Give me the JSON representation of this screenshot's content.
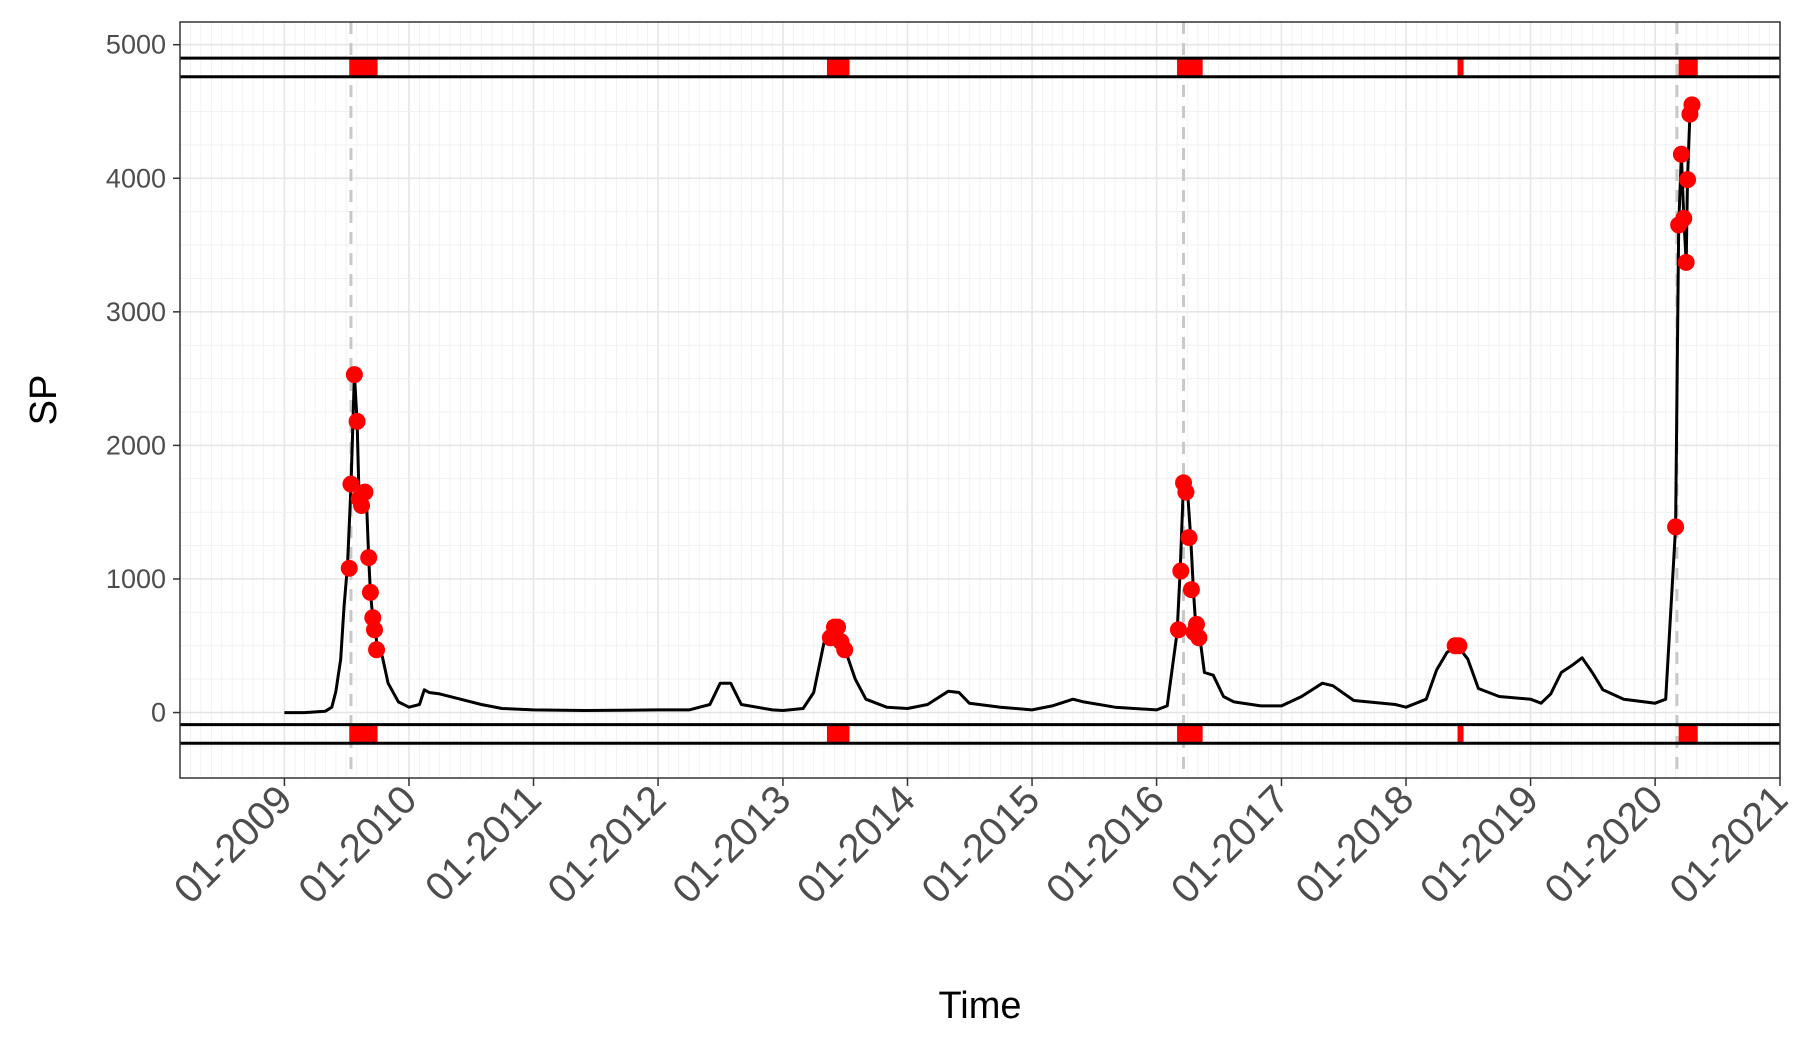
{
  "chart_data": {
    "type": "line",
    "title": "",
    "xlabel": "Time",
    "ylabel": "SP",
    "x_ticks": [
      "01-2009",
      "01-2010",
      "01-2011",
      "01-2012",
      "01-2013",
      "01-2014",
      "01-2015",
      "01-2016",
      "01-2017",
      "01-2018",
      "01-2019",
      "01-2020",
      "01-2021"
    ],
    "y_ticks": [
      0,
      1000,
      2000,
      3000,
      4000,
      5000
    ],
    "xlim": [
      "2008-03-01",
      "2021-01-01"
    ],
    "ylim": [
      -490,
      5170
    ],
    "grid": true,
    "line_color": "#000000",
    "point_color": "#ff0000",
    "vline_color": "#c8c8c8",
    "series": [
      {
        "values": [
          [
            "2009-01-01",
            0
          ],
          [
            "2009-03-01",
            0
          ],
          [
            "2009-05-01",
            10
          ],
          [
            "2009-05-20",
            40
          ],
          [
            "2009-06-01",
            160
          ],
          [
            "2009-06-15",
            400
          ],
          [
            "2009-06-25",
            800
          ],
          [
            "2009-07-05",
            1100
          ],
          [
            "2009-07-15",
            1700
          ],
          [
            "2009-07-25",
            2530
          ],
          [
            "2009-08-02",
            2180
          ],
          [
            "2009-08-08",
            1600
          ],
          [
            "2009-08-15",
            1550
          ],
          [
            "2009-08-22",
            1650
          ],
          [
            "2009-08-29",
            1620
          ],
          [
            "2009-09-05",
            1160
          ],
          [
            "2009-09-10",
            900
          ],
          [
            "2009-09-17",
            710
          ],
          [
            "2009-09-24",
            620
          ],
          [
            "2009-10-01",
            470
          ],
          [
            "2009-10-15",
            420
          ],
          [
            "2009-11-01",
            220
          ],
          [
            "2009-12-01",
            80
          ],
          [
            "2010-01-01",
            40
          ],
          [
            "2010-02-01",
            60
          ],
          [
            "2010-02-15",
            170
          ],
          [
            "2010-03-01",
            150
          ],
          [
            "2010-04-01",
            140
          ],
          [
            "2010-06-01",
            100
          ],
          [
            "2010-08-01",
            60
          ],
          [
            "2010-10-01",
            30
          ],
          [
            "2011-01-01",
            20
          ],
          [
            "2011-06-01",
            15
          ],
          [
            "2012-01-01",
            20
          ],
          [
            "2012-04-01",
            20
          ],
          [
            "2012-06-01",
            60
          ],
          [
            "2012-07-01",
            220
          ],
          [
            "2012-08-01",
            220
          ],
          [
            "2012-09-01",
            60
          ],
          [
            "2012-12-01",
            20
          ],
          [
            "2013-01-01",
            15
          ],
          [
            "2013-03-01",
            30
          ],
          [
            "2013-04-01",
            150
          ],
          [
            "2013-05-01",
            520
          ],
          [
            "2013-06-01",
            630
          ],
          [
            "2013-06-15",
            620
          ],
          [
            "2013-07-01",
            480
          ],
          [
            "2013-08-01",
            250
          ],
          [
            "2013-09-01",
            100
          ],
          [
            "2013-11-01",
            40
          ],
          [
            "2014-01-01",
            30
          ],
          [
            "2014-03-01",
            60
          ],
          [
            "2014-05-01",
            160
          ],
          [
            "2014-06-01",
            150
          ],
          [
            "2014-07-01",
            70
          ],
          [
            "2014-10-01",
            40
          ],
          [
            "2015-01-01",
            20
          ],
          [
            "2015-03-01",
            50
          ],
          [
            "2015-05-01",
            100
          ],
          [
            "2015-06-01",
            80
          ],
          [
            "2015-09-01",
            40
          ],
          [
            "2016-01-01",
            20
          ],
          [
            "2016-02-01",
            50
          ],
          [
            "2016-03-01",
            600
          ],
          [
            "2016-03-10",
            1050
          ],
          [
            "2016-03-20",
            1720
          ],
          [
            "2016-04-01",
            1650
          ],
          [
            "2016-04-10",
            1310
          ],
          [
            "2016-04-18",
            920
          ],
          [
            "2016-04-25",
            640
          ],
          [
            "2016-05-01",
            660
          ],
          [
            "2016-05-07",
            560
          ],
          [
            "2016-05-20",
            300
          ],
          [
            "2016-06-15",
            280
          ],
          [
            "2016-07-15",
            120
          ],
          [
            "2016-08-15",
            80
          ],
          [
            "2016-11-01",
            50
          ],
          [
            "2017-01-01",
            50
          ],
          [
            "2017-03-01",
            120
          ],
          [
            "2017-05-01",
            220
          ],
          [
            "2017-06-01",
            200
          ],
          [
            "2017-08-01",
            90
          ],
          [
            "2017-12-01",
            60
          ],
          [
            "2018-01-01",
            40
          ],
          [
            "2018-03-01",
            100
          ],
          [
            "2018-04-01",
            320
          ],
          [
            "2018-05-01",
            450
          ],
          [
            "2018-06-01",
            500
          ],
          [
            "2018-07-01",
            400
          ],
          [
            "2018-08-01",
            180
          ],
          [
            "2018-10-01",
            120
          ],
          [
            "2019-01-01",
            100
          ],
          [
            "2019-02-01",
            70
          ],
          [
            "2019-03-01",
            140
          ],
          [
            "2019-04-01",
            300
          ],
          [
            "2019-05-01",
            350
          ],
          [
            "2019-06-01",
            410
          ],
          [
            "2019-07-01",
            300
          ],
          [
            "2019-08-01",
            170
          ],
          [
            "2019-10-01",
            100
          ],
          [
            "2020-01-01",
            70
          ],
          [
            "2020-02-01",
            100
          ],
          [
            "2020-03-01",
            1390
          ],
          [
            "2020-03-10",
            3650
          ],
          [
            "2020-03-18",
            4180
          ],
          [
            "2020-03-25",
            3700
          ],
          [
            "2020-04-01",
            3370
          ],
          [
            "2020-04-05",
            3990
          ],
          [
            "2020-04-12",
            4480
          ],
          [
            "2020-04-18",
            4550
          ]
        ]
      }
    ],
    "points": [
      [
        "2009-07-10",
        1080
      ],
      [
        "2009-07-15",
        1710
      ],
      [
        "2009-07-25",
        2530
      ],
      [
        "2009-08-02",
        2180
      ],
      [
        "2009-08-08",
        1600
      ],
      [
        "2009-08-15",
        1550
      ],
      [
        "2009-08-25",
        1650
      ],
      [
        "2009-09-05",
        1160
      ],
      [
        "2009-09-10",
        900
      ],
      [
        "2009-09-17",
        710
      ],
      [
        "2009-09-22",
        620
      ],
      [
        "2009-09-28",
        470
      ],
      [
        "2013-05-20",
        560
      ],
      [
        "2013-06-01",
        640
      ],
      [
        "2013-06-10",
        640
      ],
      [
        "2013-06-20",
        530
      ],
      [
        "2013-07-01",
        470
      ],
      [
        "2016-03-05",
        620
      ],
      [
        "2016-03-12",
        1060
      ],
      [
        "2016-03-20",
        1720
      ],
      [
        "2016-03-27",
        1650
      ],
      [
        "2016-04-05",
        1310
      ],
      [
        "2016-04-12",
        920
      ],
      [
        "2016-04-20",
        600
      ],
      [
        "2016-04-27",
        660
      ],
      [
        "2016-05-04",
        560
      ],
      [
        "2018-05-25",
        500
      ],
      [
        "2018-06-05",
        500
      ],
      [
        "2020-03-01",
        1390
      ],
      [
        "2020-03-10",
        3650
      ],
      [
        "2020-03-18",
        4180
      ],
      [
        "2020-03-25",
        3700
      ],
      [
        "2020-04-01",
        3370
      ],
      [
        "2020-04-05",
        3990
      ],
      [
        "2020-04-12",
        4480
      ],
      [
        "2020-04-18",
        4550
      ]
    ],
    "vlines": [
      "2009-07-15",
      "2016-03-20",
      "2020-03-05"
    ],
    "band_top": [
      4760,
      4900
    ],
    "band_bottom": [
      -230,
      -90
    ],
    "band_segments": [
      [
        "2009-07-10",
        "2009-10-01"
      ],
      [
        "2013-05-10",
        "2013-07-15"
      ],
      [
        "2016-03-01",
        "2016-05-15"
      ],
      [
        "2018-06-01",
        "2018-06-15"
      ],
      [
        "2020-03-10",
        "2020-05-05"
      ]
    ]
  }
}
